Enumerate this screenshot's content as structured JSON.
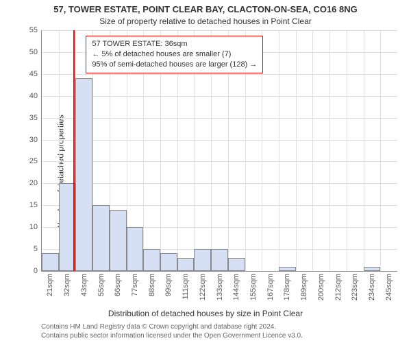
{
  "title_line1": "57, TOWER ESTATE, POINT CLEAR BAY, CLACTON-ON-SEA, CO16 8NG",
  "title_line2": "Size of property relative to detached houses in Point Clear",
  "ylabel": "Number of detached properties",
  "xlabel": "Distribution of detached houses by size in Point Clear",
  "attribution_line1": "Contains HM Land Registry data © Crown copyright and database right 2024.",
  "attribution_line2": "Contains public sector information licensed under the Open Government Licence v3.0.",
  "chart": {
    "type": "histogram",
    "ylim": [
      0,
      55
    ],
    "ytick_step": 5,
    "background_color": "#ffffff",
    "grid_color": "#e0e0e0",
    "axis_color": "#888888",
    "bar_fill": "#d6e0f5",
    "bar_border": "#888888",
    "marker_color": "#ff0000",
    "annot_border": "#ff0000",
    "tick_fontsize": 11,
    "label_fontsize": 12,
    "title_fontsize": 13,
    "x_domain_min": 15,
    "x_domain_max": 250,
    "bin_width_sqm": 11,
    "xtick_labels": [
      "21sqm",
      "32sqm",
      "43sqm",
      "55sqm",
      "66sqm",
      "77sqm",
      "88sqm",
      "99sqm",
      "111sqm",
      "122sqm",
      "133sqm",
      "144sqm",
      "155sqm",
      "167sqm",
      "178sqm",
      "189sqm",
      "200sqm",
      "212sqm",
      "223sqm",
      "234sqm",
      "245sqm"
    ],
    "values": [
      4,
      20,
      44,
      15,
      14,
      10,
      5,
      4,
      3,
      5,
      5,
      3,
      0,
      0,
      1,
      0,
      0,
      0,
      0,
      1,
      0
    ],
    "marker_value": 36,
    "annotation": {
      "line1": "57 TOWER ESTATE: 36sqm",
      "line2": "← 5% of detached houses are smaller (7)",
      "line3": "95% of semi-detached houses are larger (128) →"
    }
  }
}
